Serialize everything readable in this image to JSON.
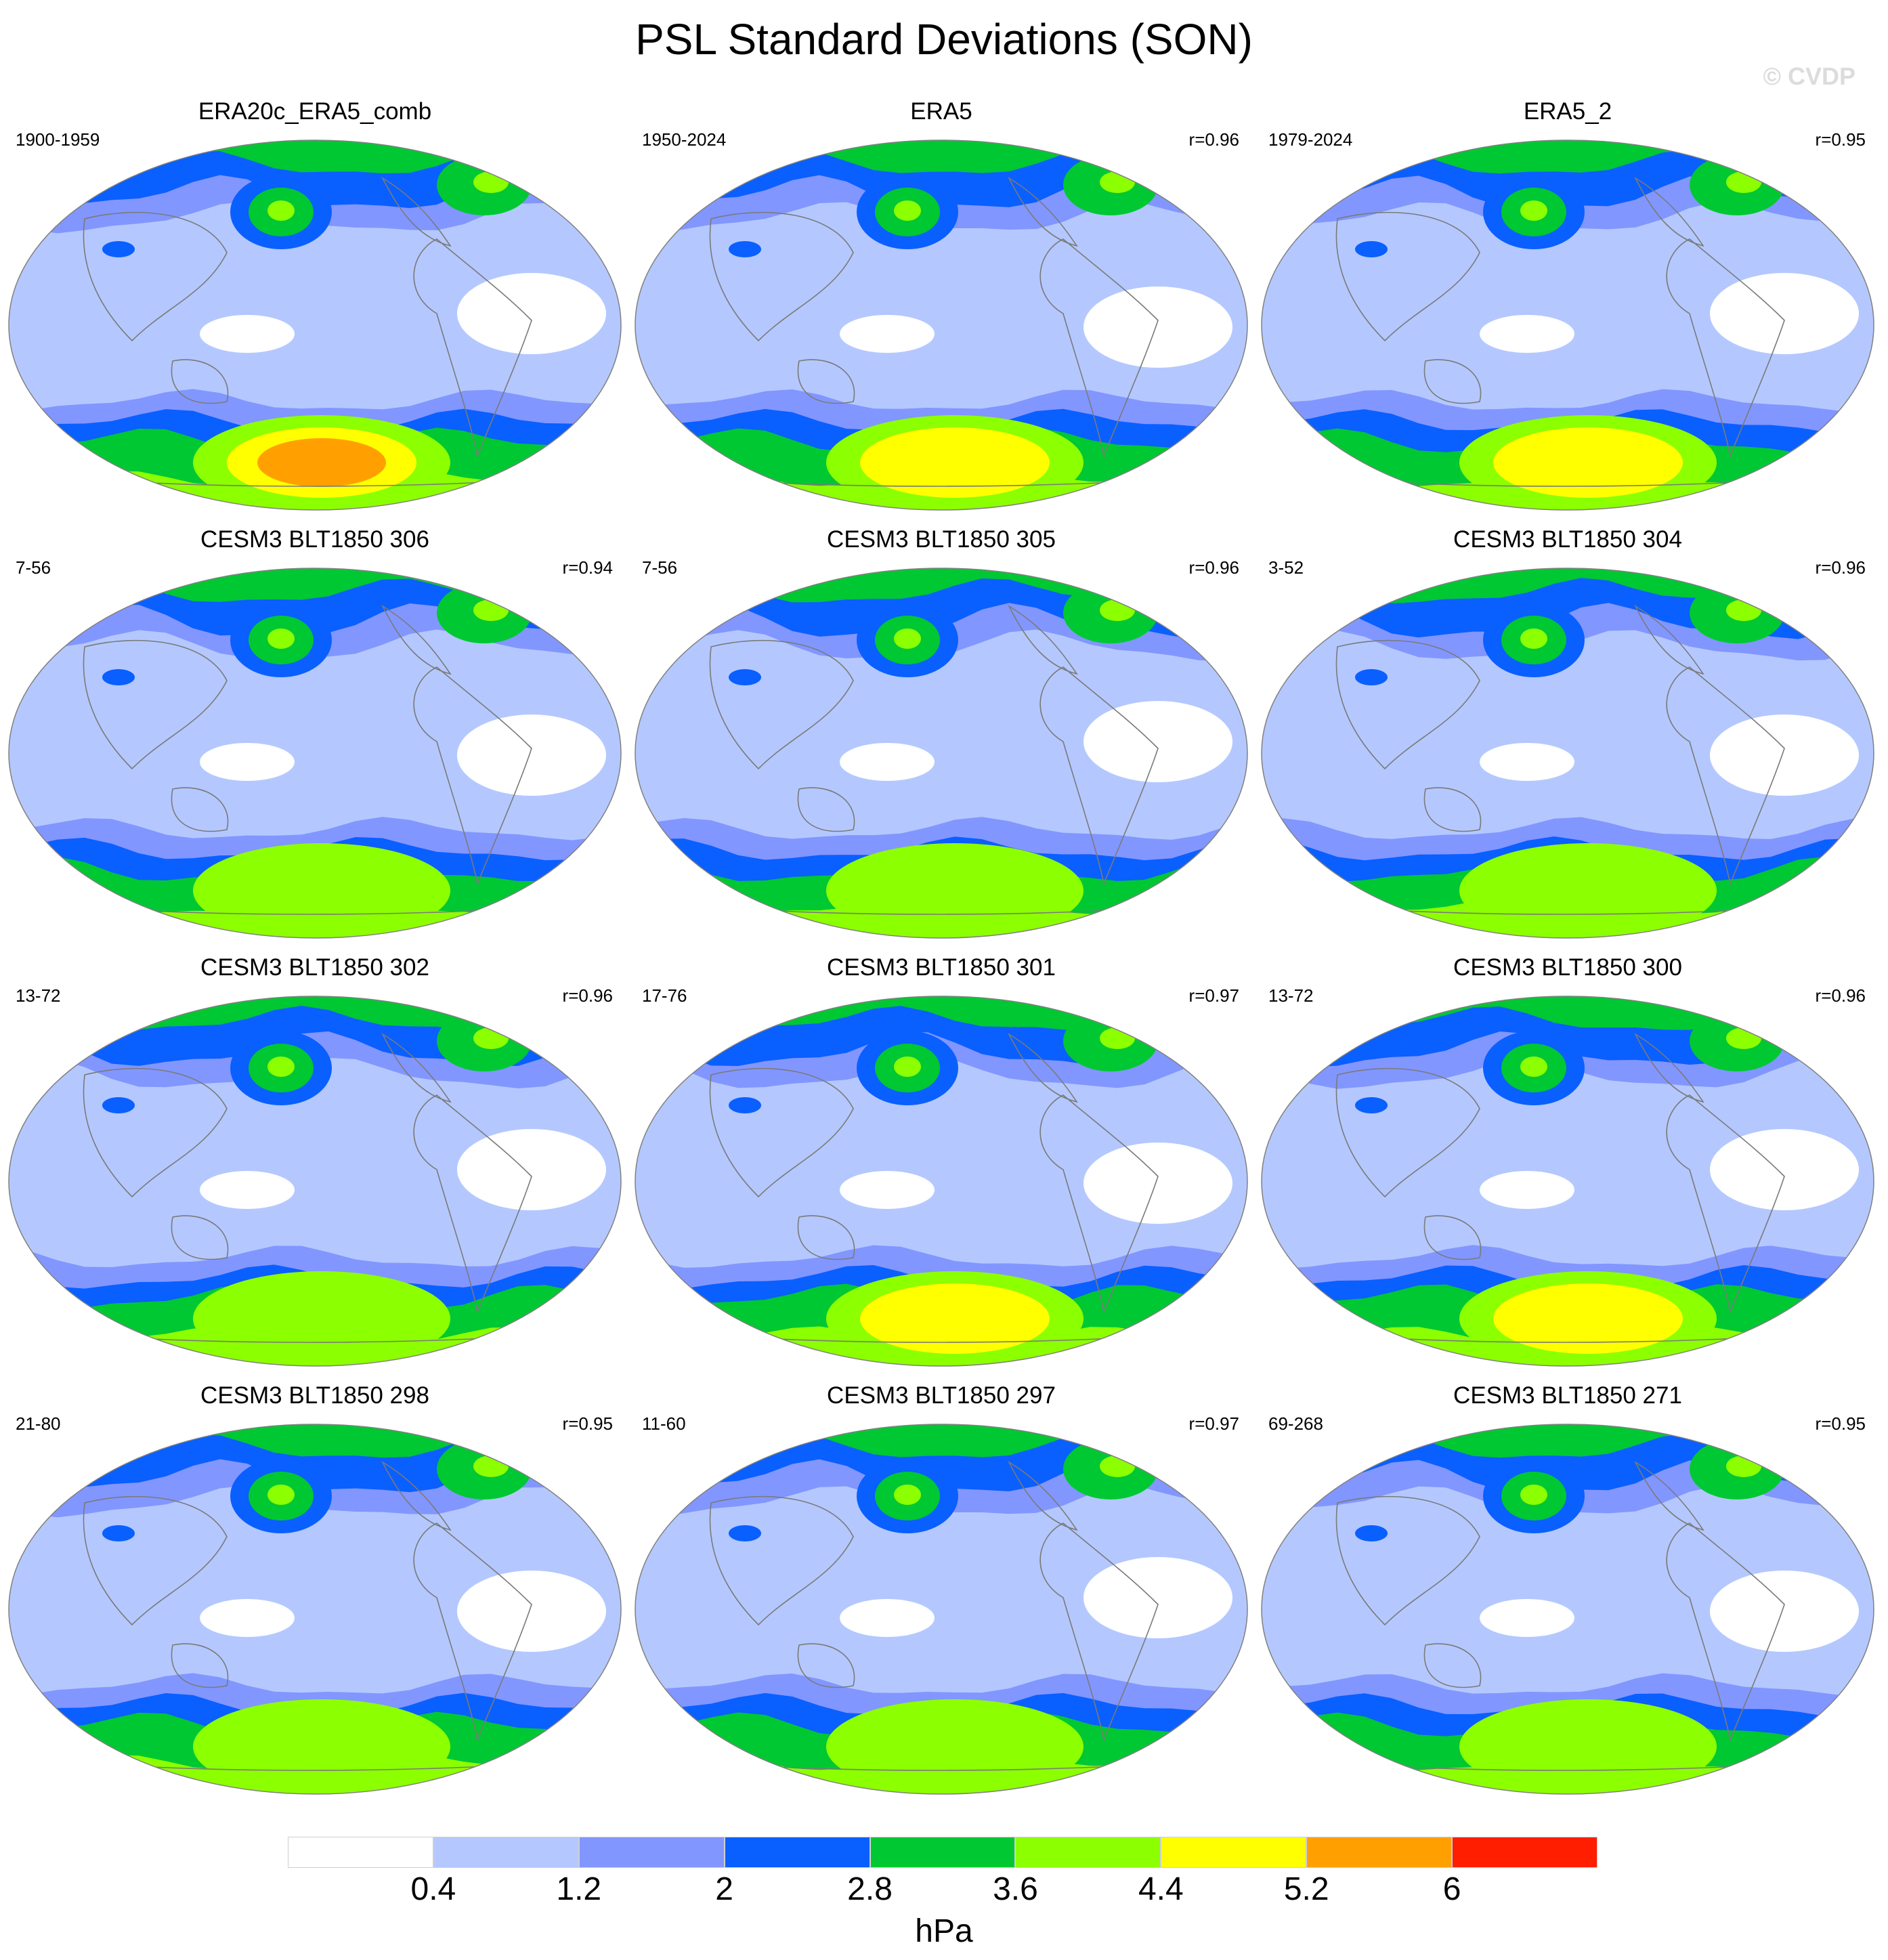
{
  "title": "PSL Standard Deviations (SON)",
  "watermark": "© CVDP",
  "colorbar": {
    "colors": [
      "#ffffff",
      "#b4c8ff",
      "#8296ff",
      "#0a5fff",
      "#00c832",
      "#8cff00",
      "#ffff00",
      "#ffa000",
      "#ff1e00"
    ],
    "tick_labels": [
      "0.4",
      "1.2",
      "2",
      "2.8",
      "3.6",
      "4.4",
      "5.2",
      "6"
    ],
    "units": "hPa"
  },
  "panels": [
    {
      "name": "ERA20c_ERA5_comb",
      "years": "1900-1959",
      "corr": "",
      "south_peak": 6
    },
    {
      "name": "ERA5",
      "years": "1950-2024",
      "corr": "r=0.96",
      "south_peak": 5
    },
    {
      "name": "ERA5_2",
      "years": "1979-2024",
      "corr": "r=0.95",
      "south_peak": 5
    },
    {
      "name": "CESM3 BLT1850 306",
      "years": "7-56",
      "corr": "r=0.94",
      "south_peak": 4
    },
    {
      "name": "CESM3 BLT1850 305",
      "years": "7-56",
      "corr": "r=0.96",
      "south_peak": 4
    },
    {
      "name": "CESM3 BLT1850 304",
      "years": "3-52",
      "corr": "r=0.96",
      "south_peak": 4
    },
    {
      "name": "CESM3 BLT1850 302",
      "years": "13-72",
      "corr": "r=0.96",
      "south_peak": 4
    },
    {
      "name": "CESM3 BLT1850 301",
      "years": "17-76",
      "corr": "r=0.97",
      "south_peak": 5
    },
    {
      "name": "CESM3 BLT1850 300",
      "years": "13-72",
      "corr": "r=0.96",
      "south_peak": 5
    },
    {
      "name": "CESM3 BLT1850 298",
      "years": "21-80",
      "corr": "r=0.95",
      "south_peak": 4
    },
    {
      "name": "CESM3 BLT1850 297",
      "years": "11-60",
      "corr": "r=0.97",
      "south_peak": 4
    },
    {
      "name": "CESM3 BLT1850 271",
      "years": "69-268",
      "corr": "r=0.95",
      "south_peak": 4
    }
  ]
}
